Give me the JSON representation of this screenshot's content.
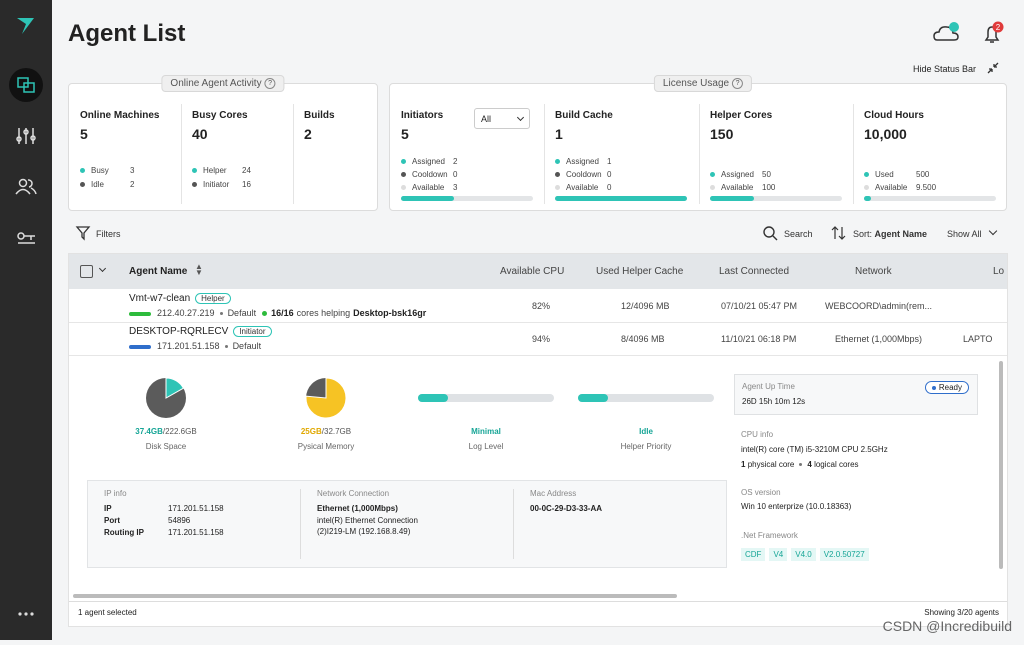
{
  "header": {
    "title": "Agent List",
    "notification_count": "2",
    "hide_status_bar": "Hide Status Bar"
  },
  "activity": {
    "title": "Online Agent Activity",
    "cards": [
      {
        "label": "Online Machines",
        "value": 5,
        "items": [
          {
            "label": "Busy",
            "value": 3,
            "color": "#2ec4b6"
          },
          {
            "label": "Idle",
            "value": 2,
            "color": "#555555"
          }
        ]
      },
      {
        "label": "Busy Cores",
        "value": 40,
        "items": [
          {
            "label": "Helper",
            "value": 24,
            "color": "#2ec4b6"
          },
          {
            "label": "Initiator",
            "value": 16,
            "color": "#555555"
          }
        ]
      },
      {
        "label": "Builds",
        "value": 2,
        "items": []
      }
    ]
  },
  "license": {
    "title": "License Usage",
    "filter": "All",
    "cards": [
      {
        "label": "Initiators",
        "value": 5,
        "items": [
          {
            "label": "Assigned",
            "value": 2,
            "color": "#2ec4b6"
          },
          {
            "label": "Cooldown",
            "value": 0,
            "color": "#555555"
          },
          {
            "label": "Available",
            "value": 3,
            "color": "#dddddd"
          }
        ]
      },
      {
        "label": "Build Cache",
        "value": 1,
        "items": [
          {
            "label": "Assigned",
            "value": 1,
            "color": "#2ec4b6"
          },
          {
            "label": "Cooldown",
            "value": 0,
            "color": "#555555"
          },
          {
            "label": "Available",
            "value": 0,
            "color": "#dddddd"
          }
        ]
      },
      {
        "label": "Helper Cores",
        "value": 150,
        "items": [
          {
            "label": "Assigned",
            "value": 50,
            "color": "#2ec4b6"
          },
          {
            "label": "Available",
            "value": 100,
            "color": "#dddddd"
          }
        ]
      },
      {
        "label": "Cloud Hours",
        "value": {
          "value": 10000,
          "label": "10,000"
        },
        "items": [
          {
            "label": "Used",
            "value": 500,
            "color": "#2ec4b6"
          },
          {
            "label": "Available",
            "value": {
              "value": 9500,
              "label": "9.500"
            },
            "color": "#dddddd"
          }
        ]
      }
    ]
  },
  "toolbar": {
    "filters": "Filters",
    "search": "Search",
    "sort_label": "Sort:",
    "sort_value": "Agent Name",
    "show": "Show All"
  },
  "table": {
    "columns": [
      "Agent Name",
      "Available CPU",
      "Used Helper Cache",
      "Last Connected",
      "Network",
      "Lo"
    ],
    "rows": [
      {
        "name": "Vmt-w7-clean",
        "role": "Helper",
        "ip": "212.40.27.219",
        "group": "Default",
        "cores": "16/16",
        "cores_text": "cores helping",
        "helping": "Desktop-bsk16gr",
        "cpu": "82%",
        "cache": "12/4096 MB",
        "last": "07/10/21 05:47 PM",
        "network": "WEBCOORD\\admin(rem...",
        "log": ""
      },
      {
        "name": "DESKTOP-RQRLECV",
        "role": "Initiator",
        "ip": "171.201.51.158",
        "group": "Default",
        "cpu": "94%",
        "cache": "8/4096 MB",
        "last": "11/10/21 06:18 PM",
        "network": "Ethernet (1,000Mbps)",
        "log": "LAPTO"
      }
    ]
  },
  "details": {
    "disk": {
      "used": {
        "value": 37.4,
        "label": "37.4GB"
      },
      "total": {
        "value": 222.6,
        "label": "/222.6GB"
      },
      "label": "Disk Space"
    },
    "memory": {
      "used": {
        "value": 25,
        "label": "25GB"
      },
      "total": {
        "value": 32.7,
        "label": "/32.7GB"
      },
      "label": "Pysical Memory"
    },
    "log": {
      "value": "Minimal",
      "label": "Log Level"
    },
    "priority": {
      "value": "Idle",
      "label": "Helper Priority"
    },
    "ip_info": {
      "title": "IP info",
      "rows": [
        [
          "IP",
          "171.201.51.158"
        ],
        [
          "Port",
          "54896"
        ],
        [
          "Routing IP",
          "171.201.51.158"
        ]
      ]
    },
    "network": {
      "title": "Network Connection",
      "name": "Ethernet (1,000Mbps)",
      "desc": "intel(R) Ethernet Connection (2)I219-LM (192.168.8.49)"
    },
    "mac": {
      "title": "Mac Address",
      "value": "00-0C-29-D3-33-AA"
    },
    "side": {
      "uptime_title": "Agent Up Time",
      "uptime": "26D 15h 10m 12s",
      "status": "Ready",
      "cpu_title": "CPU info",
      "cpu": "intel(R) core (TM) i5-3210M CPU 2.5GHz",
      "physical": "1",
      "physical_label": "physical core",
      "logical": "4",
      "logical_label": "logical cores",
      "os_title": "OS version",
      "os": "Win 10 enterprize (10.0.18363)",
      "net_title": ".Net Framework",
      "net_versions": [
        "CDF",
        "V4",
        "V4.0",
        "V2.0.50727"
      ]
    }
  },
  "footer": {
    "selected": "1 agent selected",
    "showing": "Showing 3/20 agents"
  },
  "watermark": "CSDN @Incredibuild"
}
